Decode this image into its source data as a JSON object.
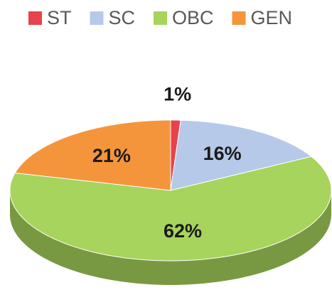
{
  "chart_data": {
    "type": "pie",
    "categories": [
      "ST",
      "SC",
      "OBC",
      "GEN"
    ],
    "values": [
      1,
      16,
      62,
      21
    ],
    "value_labels": [
      "1%",
      "16%",
      "62%",
      "21%"
    ],
    "colors": [
      "#e8424c",
      "#b7c9e8",
      "#a6d45c",
      "#f4953c"
    ],
    "legend": "top"
  }
}
